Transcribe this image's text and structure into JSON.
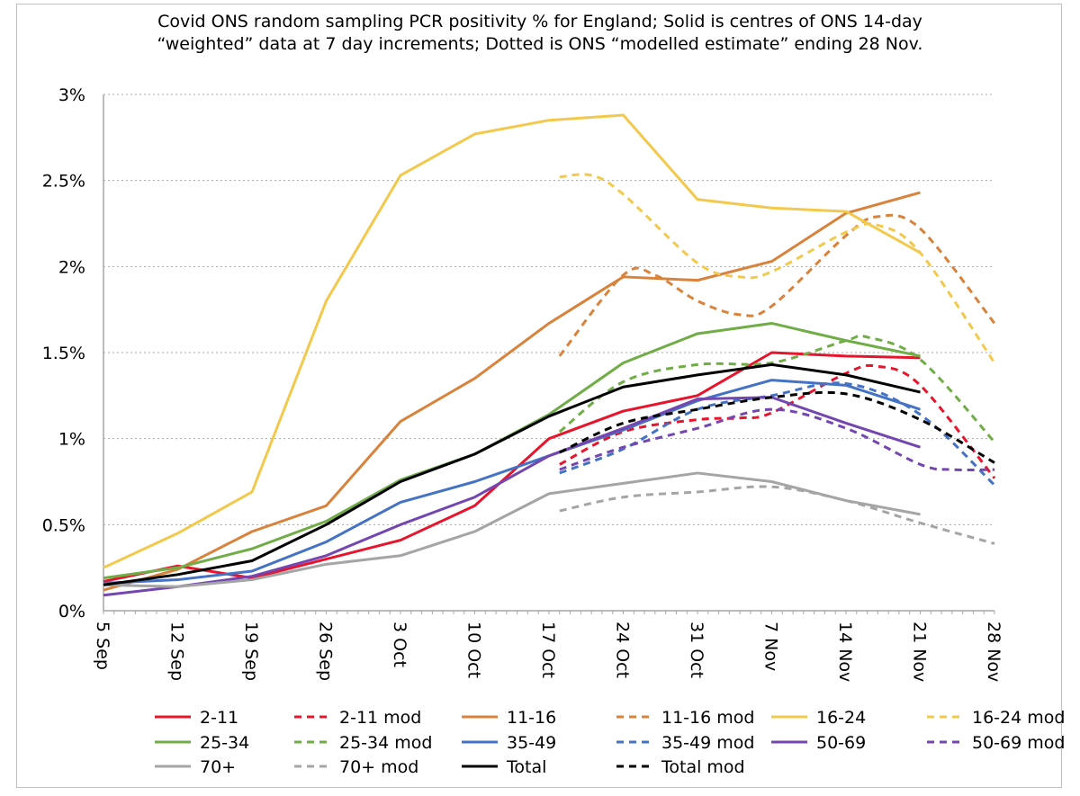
{
  "chart_data": {
    "type": "line",
    "title_lines": [
      "Covid ONS random sampling PCR positivity % for England; Solid is centres of ONS 14-day",
      "“weighted” data at 7 day increments; Dotted is ONS “modelled estimate” ending 28 Nov."
    ],
    "x_tick_labels": [
      "5 Sep",
      "12 Sep",
      "19 Sep",
      "26 Sep",
      "3 Oct",
      "10 Oct",
      "17 Oct",
      "24 Oct",
      "31 Oct",
      "7 Nov",
      "14 Nov",
      "21 Nov",
      "28 Nov"
    ],
    "x_tick_dates": [
      "2020-09-05",
      "2020-09-12",
      "2020-09-19",
      "2020-09-26",
      "2020-10-03",
      "2020-10-10",
      "2020-10-17",
      "2020-10-24",
      "2020-10-31",
      "2020-11-07",
      "2020-11-14",
      "2020-11-21",
      "2020-11-28"
    ],
    "y_tick_labels": [
      "0%",
      "0.5%",
      "1%",
      "1.5%",
      "2%",
      "2.5%",
      "3%"
    ],
    "ylim": [
      0,
      3
    ],
    "y_unit": "%",
    "grid": "horizontal dotted",
    "legend": "bottom",
    "solid_dates": [
      "2020-09-05",
      "2020-09-12",
      "2020-09-19",
      "2020-09-26",
      "2020-10-03",
      "2020-10-10",
      "2020-10-17",
      "2020-10-24",
      "2020-10-31",
      "2020-11-07",
      "2020-11-14",
      "2020-11-21"
    ],
    "series": [
      {
        "name": "2-11",
        "color": "#e8142c",
        "dash": false,
        "values": [
          0.17,
          0.26,
          0.19,
          0.3,
          0.41,
          0.61,
          1.0,
          1.16,
          1.25,
          1.5,
          1.48,
          1.47
        ]
      },
      {
        "name": "2-11 mod",
        "color": "#e8142c",
        "dash": true,
        "points": [
          [
            "2020-10-18",
            0.85
          ],
          [
            "2020-10-24",
            1.04
          ],
          [
            "2020-10-31",
            1.11
          ],
          [
            "2020-11-04",
            1.12
          ],
          [
            "2020-11-07",
            1.15
          ],
          [
            "2020-11-14",
            1.38
          ],
          [
            "2020-11-17",
            1.42
          ],
          [
            "2020-11-21",
            1.31
          ],
          [
            "2020-11-28",
            0.77
          ]
        ]
      },
      {
        "name": "11-16",
        "color": "#d9823b",
        "dash": false,
        "values": [
          0.12,
          0.24,
          0.46,
          0.61,
          1.1,
          1.35,
          1.67,
          1.94,
          1.92,
          2.03,
          2.31,
          2.43
        ]
      },
      {
        "name": "11-16 mod",
        "color": "#d9823b",
        "dash": true,
        "points": [
          [
            "2020-10-18",
            1.48
          ],
          [
            "2020-10-24",
            1.95
          ],
          [
            "2020-10-27",
            1.95
          ],
          [
            "2020-10-31",
            1.8
          ],
          [
            "2020-11-04",
            1.72
          ],
          [
            "2020-11-07",
            1.77
          ],
          [
            "2020-11-14",
            2.18
          ],
          [
            "2020-11-17",
            2.29
          ],
          [
            "2020-11-21",
            2.22
          ],
          [
            "2020-11-28",
            1.67
          ]
        ]
      },
      {
        "name": "16-24",
        "color": "#f2c94c",
        "dash": false,
        "values": [
          0.25,
          0.45,
          0.69,
          1.8,
          2.53,
          2.77,
          2.85,
          2.88,
          2.39,
          2.34,
          2.32,
          2.08
        ]
      },
      {
        "name": "16-24 mod",
        "color": "#f2c94c",
        "dash": true,
        "points": [
          [
            "2020-10-18",
            2.52
          ],
          [
            "2020-10-21",
            2.53
          ],
          [
            "2020-10-24",
            2.42
          ],
          [
            "2020-10-31",
            2.02
          ],
          [
            "2020-11-04",
            1.94
          ],
          [
            "2020-11-07",
            1.97
          ],
          [
            "2020-11-14",
            2.2
          ],
          [
            "2020-11-17",
            2.24
          ],
          [
            "2020-11-21",
            2.08
          ],
          [
            "2020-11-28",
            1.44
          ]
        ]
      },
      {
        "name": "25-34",
        "color": "#70ad47",
        "dash": false,
        "values": [
          0.19,
          0.25,
          0.36,
          0.52,
          0.76,
          0.91,
          1.14,
          1.44,
          1.61,
          1.67,
          1.57,
          1.48
        ]
      },
      {
        "name": "25-34 mod",
        "color": "#70ad47",
        "dash": true,
        "points": [
          [
            "2020-10-18",
            1.04
          ],
          [
            "2020-10-24",
            1.33
          ],
          [
            "2020-10-31",
            1.43
          ],
          [
            "2020-11-07",
            1.44
          ],
          [
            "2020-11-14",
            1.57
          ],
          [
            "2020-11-16",
            1.59
          ],
          [
            "2020-11-21",
            1.46
          ],
          [
            "2020-11-28",
            0.98
          ]
        ]
      },
      {
        "name": "35-49",
        "color": "#4472c4",
        "dash": false,
        "values": [
          0.16,
          0.18,
          0.23,
          0.4,
          0.63,
          0.75,
          0.9,
          1.05,
          1.22,
          1.34,
          1.31,
          1.17
        ]
      },
      {
        "name": "35-49 mod",
        "color": "#4472c4",
        "dash": true,
        "points": [
          [
            "2020-10-18",
            0.8
          ],
          [
            "2020-10-24",
            0.94
          ],
          [
            "2020-10-31",
            1.17
          ],
          [
            "2020-11-07",
            1.25
          ],
          [
            "2020-11-14",
            1.32
          ],
          [
            "2020-11-21",
            1.14
          ],
          [
            "2020-11-28",
            0.73
          ]
        ]
      },
      {
        "name": "50-69",
        "color": "#7446b0",
        "dash": false,
        "values": [
          0.09,
          0.14,
          0.2,
          0.32,
          0.5,
          0.66,
          0.9,
          1.06,
          1.23,
          1.24,
          1.09,
          0.95
        ]
      },
      {
        "name": "50-69 mod",
        "color": "#7446b0",
        "dash": true,
        "points": [
          [
            "2020-10-18",
            0.82
          ],
          [
            "2020-10-24",
            0.95
          ],
          [
            "2020-10-31",
            1.06
          ],
          [
            "2020-11-07",
            1.17
          ],
          [
            "2020-11-14",
            1.06
          ],
          [
            "2020-11-21",
            0.85
          ],
          [
            "2020-11-24",
            0.82
          ],
          [
            "2020-11-28",
            0.82
          ]
        ]
      },
      {
        "name": "70+",
        "color": "#a5a5a5",
        "dash": false,
        "values": [
          0.15,
          0.14,
          0.18,
          0.27,
          0.32,
          0.46,
          0.68,
          0.74,
          0.8,
          0.75,
          0.64,
          0.56
        ]
      },
      {
        "name": "70+ mod",
        "color": "#a5a5a5",
        "dash": true,
        "points": [
          [
            "2020-10-18",
            0.58
          ],
          [
            "2020-10-24",
            0.66
          ],
          [
            "2020-10-31",
            0.69
          ],
          [
            "2020-11-07",
            0.72
          ],
          [
            "2020-11-14",
            0.64
          ],
          [
            "2020-11-21",
            0.51
          ],
          [
            "2020-11-28",
            0.39
          ]
        ]
      },
      {
        "name": "Total",
        "color": "#000000",
        "dash": false,
        "values": [
          0.15,
          0.21,
          0.29,
          0.5,
          0.75,
          0.91,
          1.13,
          1.3,
          1.37,
          1.43,
          1.37,
          1.27
        ]
      },
      {
        "name": "Total mod",
        "color": "#000000",
        "dash": true,
        "points": [
          [
            "2020-10-18",
            0.92
          ],
          [
            "2020-10-24",
            1.09
          ],
          [
            "2020-10-31",
            1.17
          ],
          [
            "2020-11-07",
            1.24
          ],
          [
            "2020-11-14",
            1.26
          ],
          [
            "2020-11-21",
            1.11
          ],
          [
            "2020-11-28",
            0.86
          ]
        ]
      }
    ]
  }
}
